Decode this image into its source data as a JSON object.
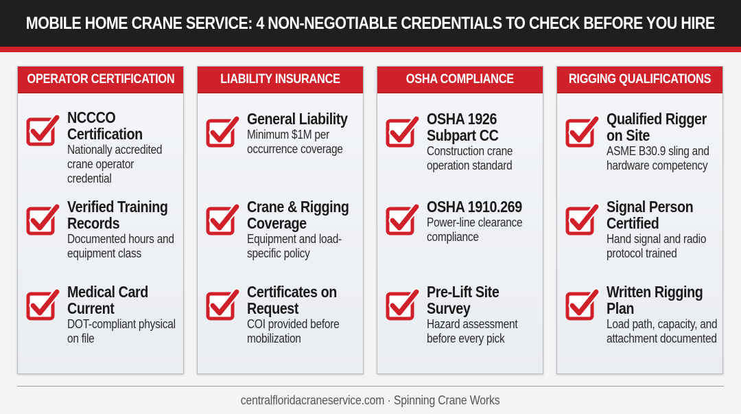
{
  "header": {
    "title": "MOBILE HOME CRANE SERVICE: 4 NON-NEGOTIABLE CREDENTIALS TO CHECK BEFORE YOU HIRE"
  },
  "colors": {
    "accent": "#d0202a",
    "header_bg": "#1f1f1f",
    "card_bg": "#f3f5f8"
  },
  "columns": [
    {
      "heading": "OPERATOR CERTIFICATION",
      "items": [
        {
          "icon": "checkbox-checked-icon",
          "title": "NCCCO Certification",
          "desc": "Nationally accredited crane operator credential"
        },
        {
          "icon": "checkbox-checked-icon",
          "title": "Verified Training Records",
          "desc": "Documented hours and equipment class"
        },
        {
          "icon": "checkbox-checked-icon",
          "title": "Medical Card Current",
          "desc": "DOT-compliant physical on file"
        }
      ]
    },
    {
      "heading": "LIABILITY INSURANCE",
      "items": [
        {
          "icon": "checkbox-checked-icon",
          "title": "General Liability",
          "desc": "Minimum $1M per occurrence coverage"
        },
        {
          "icon": "checkbox-checked-icon",
          "title": "Crane & Rigging Coverage",
          "desc": "Equipment and load-specific policy"
        },
        {
          "icon": "checkbox-checked-icon",
          "title": "Certificates on Request",
          "desc": "COI provided before mobilization"
        }
      ]
    },
    {
      "heading": "OSHA COMPLIANCE",
      "items": [
        {
          "icon": "checkbox-checked-icon",
          "title": "OSHA 1926 Subpart CC",
          "desc": "Construction crane operation standard"
        },
        {
          "icon": "checkbox-checked-icon",
          "title": "OSHA 1910.269",
          "desc": "Power-line clearance compliance"
        },
        {
          "icon": "checkbox-checked-icon",
          "title": "Pre-Lift Site Survey",
          "desc": "Hazard assessment before every pick"
        }
      ]
    },
    {
      "heading": "RIGGING QUALIFICATIONS",
      "items": [
        {
          "icon": "checkbox-checked-icon",
          "title": "Qualified Rigger on Site",
          "desc": "ASME B30.9 sling and hardware competency"
        },
        {
          "icon": "checkbox-checked-icon",
          "title": "Signal Person Certified",
          "desc": "Hand signal and radio protocol trained"
        },
        {
          "icon": "checkbox-checked-icon",
          "title": "Written Rigging Plan",
          "desc": "Load path, capacity, and attachment documented"
        }
      ]
    }
  ],
  "footer": {
    "text": "centralfloridacraneservice.com · Spinning Crane Works"
  }
}
